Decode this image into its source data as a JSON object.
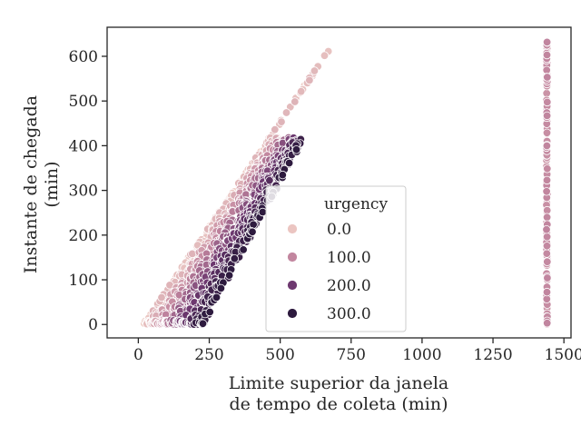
{
  "chart_data": {
    "type": "scatter",
    "title": "",
    "xlabel_lines": [
      "Limite superior da janela",
      "de tempo de coleta (min)"
    ],
    "ylabel_lines": [
      "Instante de chegada",
      "(min)"
    ],
    "xlim": [
      -110,
      1525
    ],
    "ylim": [
      -30,
      665
    ],
    "xticks": [
      0,
      250,
      500,
      750,
      1000,
      1250,
      1500
    ],
    "yticks": [
      0,
      100,
      200,
      300,
      400,
      500,
      600
    ],
    "legend": {
      "title": "urgency",
      "placement": "center",
      "entries": [
        {
          "label": "0.0",
          "color": "#ebc5c1"
        },
        {
          "label": "100.0",
          "color": "#c2869f"
        },
        {
          "label": "200.0",
          "color": "#6e3970"
        },
        {
          "label": "300.0",
          "color": "#2d1a3e"
        }
      ]
    },
    "hue_scale": {
      "name": "urgency",
      "min": 0,
      "max": 300,
      "stops": [
        "#f0d0c8",
        "#c2869f",
        "#6e3970",
        "#2d1a3e"
      ]
    },
    "clusters": [
      {
        "description": "diagonal band",
        "upper_edge": [
          [
            20,
            0
          ],
          [
            670,
            612
          ]
        ],
        "lower_edge": [
          [
            230,
            0
          ],
          [
            570,
            400
          ]
        ],
        "urgency_range": [
          0,
          330
        ]
      },
      {
        "description": "vertical column",
        "x": 1440,
        "y_range": [
          0,
          632
        ],
        "urgency": 90
      }
    ],
    "grid": false
  }
}
